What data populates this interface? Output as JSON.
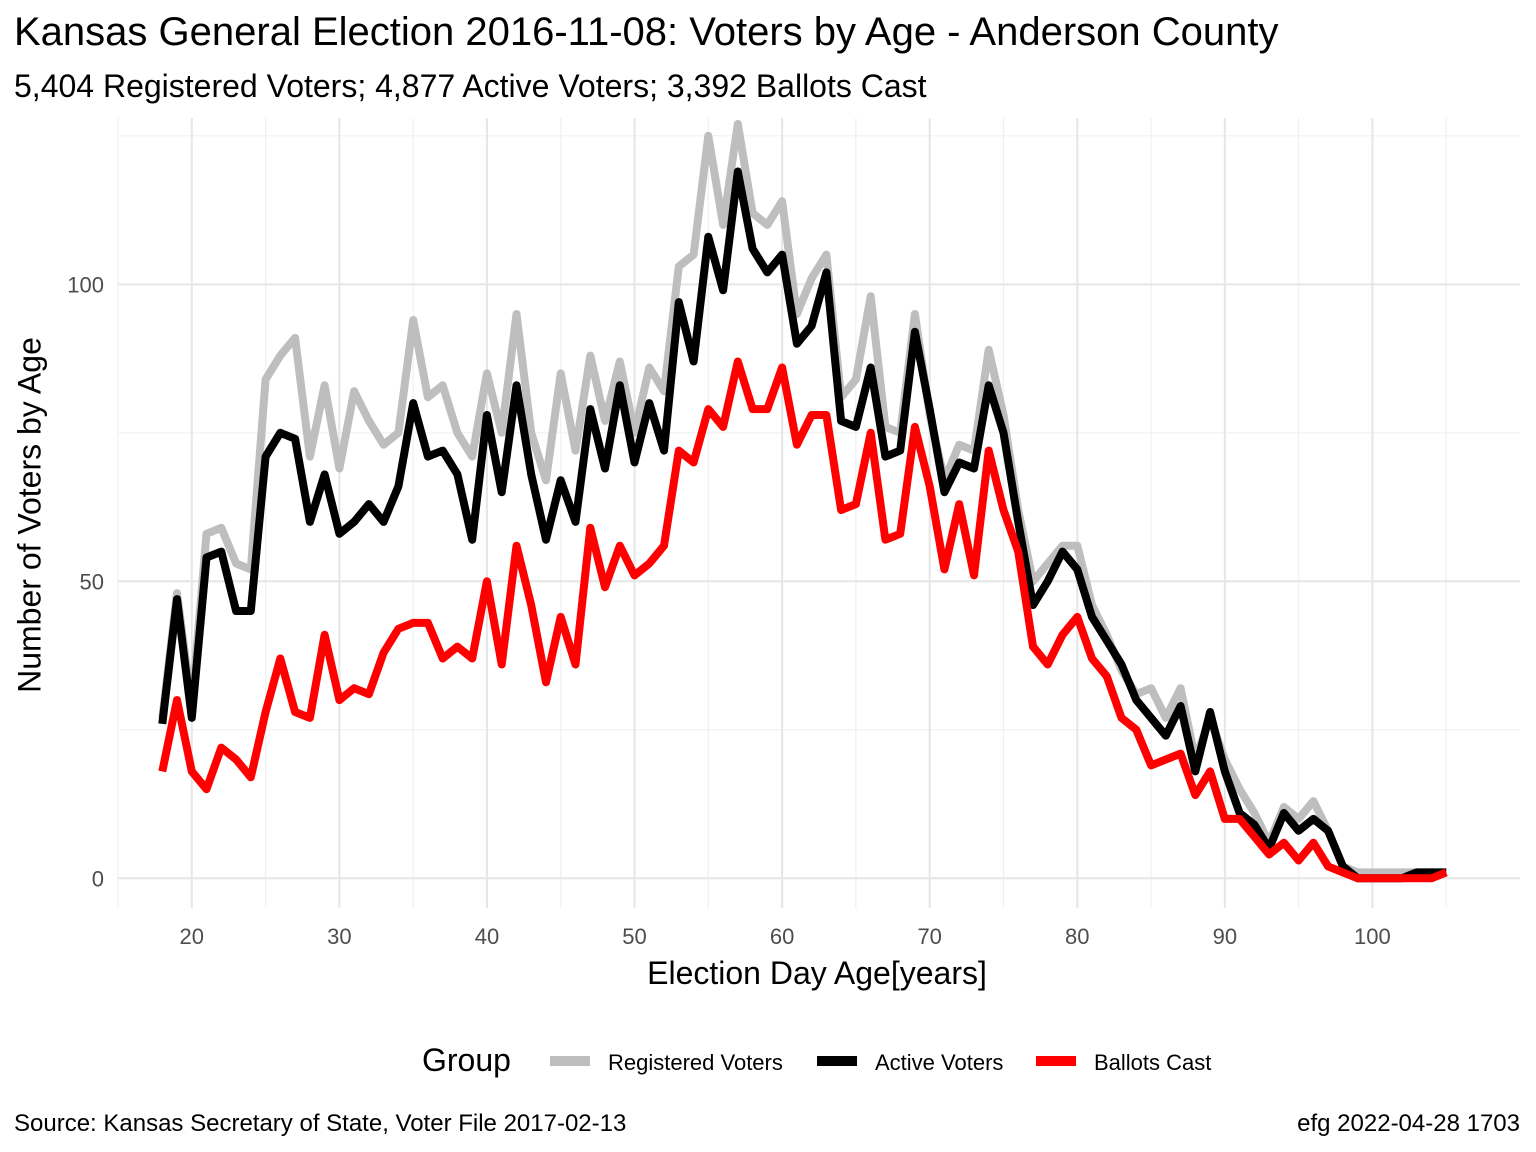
{
  "chart_data": {
    "type": "line",
    "title": "Kansas General Election 2016-11-08:  Voters by Age - Anderson County",
    "subtitle": "5,404 Registered Voters; 4,877 Active Voters; 3,392 Ballots Cast",
    "xlabel": "Election Day Age[years]",
    "ylabel": "Number of Voters by Age",
    "xlim": [
      15,
      110
    ],
    "ylim": [
      -5,
      128
    ],
    "x_ticks": [
      20,
      30,
      40,
      50,
      60,
      70,
      80,
      90,
      100
    ],
    "y_ticks": [
      0,
      50,
      100
    ],
    "grid": true,
    "legend": {
      "title": "Group",
      "position": "bottom"
    },
    "x": [
      18,
      19,
      20,
      21,
      22,
      23,
      24,
      25,
      26,
      27,
      28,
      29,
      30,
      31,
      32,
      33,
      34,
      35,
      36,
      37,
      38,
      39,
      40,
      41,
      42,
      43,
      44,
      45,
      46,
      47,
      48,
      49,
      50,
      51,
      52,
      53,
      54,
      55,
      56,
      57,
      58,
      59,
      60,
      61,
      62,
      63,
      64,
      65,
      66,
      67,
      68,
      69,
      70,
      71,
      72,
      73,
      74,
      75,
      76,
      77,
      78,
      79,
      80,
      81,
      82,
      83,
      84,
      85,
      86,
      87,
      88,
      89,
      90,
      91,
      92,
      93,
      94,
      95,
      96,
      97,
      98,
      99,
      100,
      101,
      102,
      103,
      104,
      105
    ],
    "series": [
      {
        "name": "Registered Voters",
        "color": "#bebebe",
        "values": [
          27,
          48,
          29,
          58,
          59,
          53,
          52,
          84,
          88,
          91,
          71,
          83,
          69,
          82,
          77,
          73,
          75,
          94,
          81,
          83,
          75,
          71,
          85,
          75,
          95,
          75,
          67,
          85,
          72,
          88,
          77,
          87,
          75,
          86,
          82,
          103,
          105,
          125,
          110,
          127,
          112,
          110,
          114,
          95,
          101,
          105,
          81,
          84,
          98,
          76,
          75,
          95,
          78,
          67,
          73,
          72,
          89,
          78,
          62,
          50,
          53,
          56,
          56,
          46,
          41,
          35,
          31,
          32,
          27,
          32,
          20,
          27,
          20,
          15,
          11,
          6,
          12,
          10,
          13,
          8,
          2,
          1,
          1,
          1,
          1,
          1,
          1,
          1
        ]
      },
      {
        "name": "Active Voters",
        "color": "#000000",
        "values": [
          26,
          47,
          27,
          54,
          55,
          45,
          45,
          71,
          75,
          74,
          60,
          68,
          58,
          60,
          63,
          60,
          66,
          80,
          71,
          72,
          68,
          57,
          78,
          65,
          83,
          68,
          57,
          67,
          60,
          79,
          69,
          83,
          70,
          80,
          72,
          97,
          87,
          108,
          99,
          119,
          106,
          102,
          105,
          90,
          93,
          102,
          77,
          76,
          86,
          71,
          72,
          92,
          79,
          65,
          70,
          69,
          83,
          75,
          60,
          46,
          50,
          55,
          52,
          44,
          40,
          36,
          30,
          27,
          24,
          29,
          18,
          28,
          18,
          11,
          9,
          5,
          11,
          8,
          10,
          8,
          2,
          0,
          0,
          0,
          0,
          1,
          1,
          1
        ]
      },
      {
        "name": "Ballots Cast",
        "color": "#ff0000",
        "values": [
          18,
          30,
          18,
          15,
          22,
          20,
          17,
          28,
          37,
          28,
          27,
          41,
          30,
          32,
          31,
          38,
          42,
          43,
          43,
          37,
          39,
          37,
          50,
          36,
          56,
          46,
          33,
          44,
          36,
          59,
          49,
          56,
          51,
          53,
          56,
          72,
          70,
          79,
          76,
          87,
          79,
          79,
          86,
          73,
          78,
          78,
          62,
          63,
          75,
          57,
          58,
          76,
          66,
          52,
          63,
          51,
          72,
          62,
          55,
          39,
          36,
          41,
          44,
          37,
          34,
          27,
          25,
          19,
          20,
          21,
          14,
          18,
          10,
          10,
          7,
          4,
          6,
          3,
          6,
          2,
          1,
          0,
          0,
          0,
          0,
          0,
          0,
          1
        ]
      }
    ]
  },
  "caption": {
    "source": "Source:  Kansas Secretary of State, Voter File  2017-02-13",
    "credit": "efg 2022-04-28 1703"
  }
}
